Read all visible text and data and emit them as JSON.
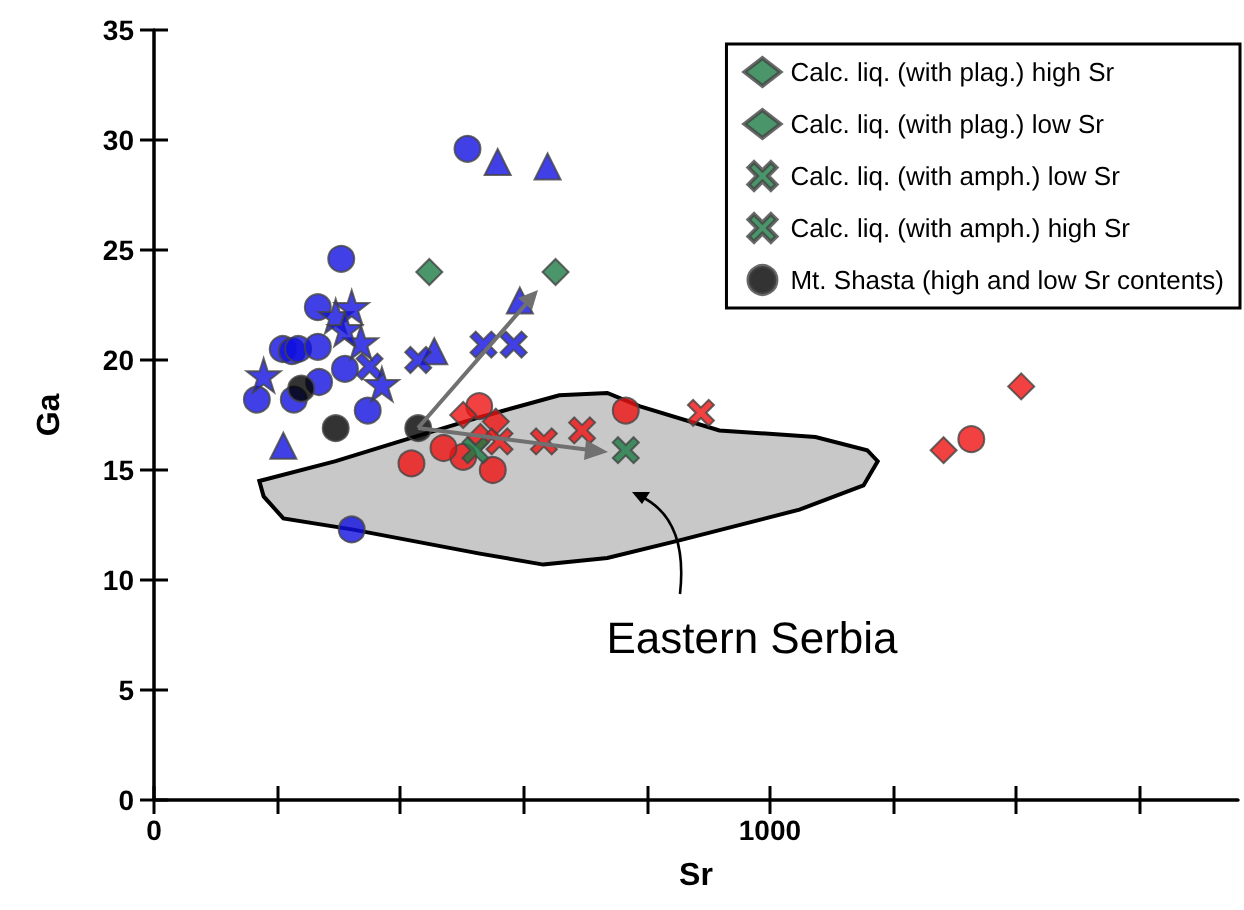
{
  "chart_data": {
    "type": "scatter",
    "xlabel": "Sr",
    "ylabel": "Ga",
    "xlim": [
      0,
      1760
    ],
    "ylim": [
      0,
      35
    ],
    "xticks": [
      0,
      {
        "value": 200,
        "label": null
      },
      {
        "value": 400,
        "label": null
      },
      {
        "value": 600,
        "label": null
      },
      {
        "value": 800,
        "label": null
      },
      1000,
      {
        "value": 1200,
        "label": null
      },
      {
        "value": 1400,
        "label": null
      },
      {
        "value": 1600,
        "label": null
      }
    ],
    "yticks": [
      0,
      5,
      10,
      15,
      20,
      25,
      30,
      35
    ],
    "grid": false,
    "legend": "top right",
    "annotations": [
      "Eastern Serbia"
    ],
    "series": [
      {
        "type": "area",
        "color": "#c8c8c8",
        "x": [
          171,
          178,
          210,
          321,
          529,
          632,
          736,
          853,
          1048,
          1152,
          1175,
          1158,
          1074,
          918,
          788,
          736,
          658,
          529,
          399,
          295,
          171
        ],
        "values": [
          14.5,
          13.8,
          12.8,
          12.3,
          11.2,
          10.7,
          11.0,
          11.8,
          13.2,
          14.3,
          15.4,
          15.9,
          16.5,
          16.8,
          17.9,
          18.5,
          18.4,
          17.4,
          16.3,
          15.4,
          14.5
        ]
      },
      {
        "name": "Calc. liq. (with plag.) high Sr",
        "color": "#1e7b45",
        "marker": "diamond",
        "x": [
          652
        ],
        "values": [
          24.0
        ]
      },
      {
        "name": "Calc. liq. (with plag.) low Sr",
        "color": "#1e7b45",
        "marker": "diamond",
        "x": [
          447
        ],
        "values": [
          24.0
        ]
      },
      {
        "name": "Calc. liq. (with amph.) low Sr",
        "color": "#1e7b45",
        "marker": "cross",
        "x": [
          522
        ],
        "values": [
          15.9
        ]
      },
      {
        "name": "Calc. liq. (with amph.) high Sr",
        "color": "#1e7b45",
        "marker": "cross",
        "x": [
          766
        ],
        "values": [
          15.9
        ]
      },
      {
        "name": "Mt. Shasta (high and low Sr contents)",
        "color": "#000000",
        "marker": "circle",
        "x": [
          295,
          429
        ],
        "values": [
          16.9,
          16.9
        ]
      },
      {
        "color": "#1010e0",
        "marker": "circle",
        "x": [
          167,
          209,
          224,
          234,
          266,
          304,
          310,
          509,
          321
        ],
        "values": [
          18.2,
          20.5,
          20.4,
          20.5,
          20.6,
          24.6,
          19.6,
          29.6,
          12.3
        ]
      },
      {
        "color": "#1010e0",
        "marker": "circle",
        "x": [
          266,
          227,
          347,
          268
        ],
        "values": [
          22.4,
          18.2,
          17.7,
          19.0
        ]
      },
      {
        "color": "#000000",
        "marker": "circle",
        "x": [
          239
        ],
        "values": [
          18.7
        ]
      },
      {
        "color": "#1010e0",
        "marker": "star",
        "x": [
          178,
          295,
          321,
          336,
          370,
          310
        ],
        "values": [
          19.3,
          22.0,
          22.4,
          20.8,
          18.9,
          21.4
        ]
      },
      {
        "color": "#1010e0",
        "marker": "triangle",
        "x": [
          210,
          558,
          639,
          594
        ],
        "values": [
          16.1,
          29.0,
          28.8,
          22.7
        ]
      },
      {
        "color": "#1010e0",
        "marker": "triangle",
        "x": [
          455
        ],
        "values": [
          20.4
        ]
      },
      {
        "color": "#1010e0",
        "marker": "cross",
        "x": [
          429,
          584
        ],
        "values": [
          20.0,
          20.7
        ]
      },
      {
        "color": "#1010e0",
        "marker": "cross",
        "x": [
          535,
          350
        ],
        "values": [
          20.7,
          19.7
        ]
      },
      {
        "color": "#ee1111",
        "marker": "circle",
        "x": [
          418,
          502,
          528,
          550,
          766,
          1327,
          470
        ],
        "values": [
          15.3,
          15.6,
          17.9,
          15.0,
          17.7,
          16.4,
          16.0
        ]
      },
      {
        "color": "#ee1111",
        "marker": "diamond",
        "x": [
          1282,
          1408,
          502,
          555,
          530
        ],
        "values": [
          15.9,
          18.8,
          17.5,
          17.2,
          16.5
        ]
      },
      {
        "color": "#ee1111",
        "marker": "cross",
        "x": [
          888,
          633
        ],
        "values": [
          17.6,
          16.3
        ]
      },
      {
        "color": "#ee1111",
        "marker": "cross",
        "x": [
          695,
          561
        ],
        "values": [
          16.8,
          16.3
        ]
      }
    ]
  }
}
